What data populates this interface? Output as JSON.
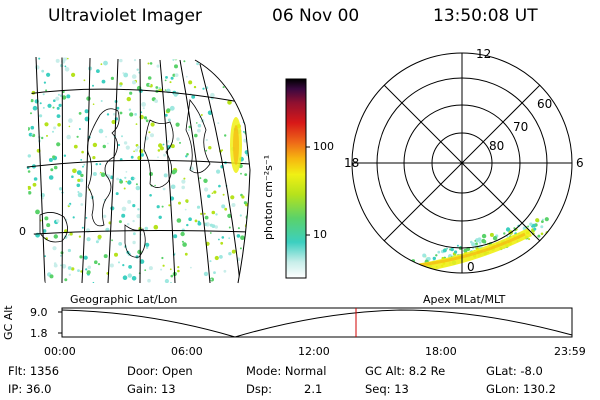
{
  "header": {
    "instrument": "Ultraviolet Imager",
    "date": "06 Nov 00",
    "time": "13:50:08 UT"
  },
  "colorbar": {
    "unit_label": "photon cm⁻²s⁻¹",
    "ticks": [
      "100",
      "10"
    ]
  },
  "geo_map": {
    "label": "Geographic Lat/Lon",
    "side_tick": "0"
  },
  "polar_plot": {
    "label": "Apex MLat/MLT",
    "mlt_labels": [
      "12",
      "18",
      "6",
      "0"
    ],
    "lat_rings": [
      "60",
      "70",
      "80"
    ]
  },
  "timeline": {
    "ylabel": "GC Alt",
    "yticks": [
      "9.0",
      "1.8"
    ],
    "xticks": [
      "00:00",
      "06:00",
      "12:00",
      "18:00",
      "23:59"
    ],
    "marker_hours": 13.835
  },
  "info": {
    "flt": "Flt: 1356",
    "ip": "IP: 36.0",
    "door": "Door: Open",
    "gain": "Gain: 13",
    "mode": "Mode: Normal",
    "dsp_label": "Dsp:",
    "dsp_value": "2.1",
    "gc_alt": "GC Alt: 8.2 Re",
    "seq": "Seq: 13",
    "glat": "GLat:  -8.0",
    "glon": "GLon: 130.2"
  },
  "colors": {
    "marker": "#d00000",
    "gradient": [
      "#ffffff",
      "#9fe8e0",
      "#3ccfc0",
      "#5ad26a",
      "#b6e21c",
      "#f0f014",
      "#f6b610",
      "#ee6a18",
      "#d81818",
      "#901030",
      "#3a0840",
      "#000000"
    ]
  }
}
